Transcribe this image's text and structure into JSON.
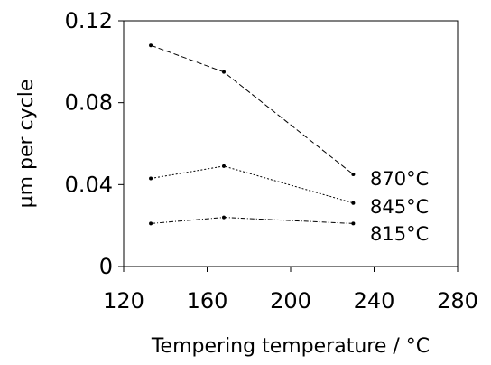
{
  "chart_data": {
    "type": "line",
    "xlabel": "Tempering temperature / °C",
    "ylabel": "µm per cycle",
    "xlim": [
      120,
      280
    ],
    "ylim": [
      0,
      0.12
    ],
    "xticks": [
      120,
      160,
      200,
      240,
      280
    ],
    "yticks": [
      0,
      0.04,
      0.08,
      0.12
    ],
    "ytick_labels": [
      "0",
      "0.04",
      "0.08",
      "0.12"
    ],
    "grid": false,
    "legend": "inline labels at right end of each series",
    "series": [
      {
        "name": "870°C",
        "x": [
          133,
          168,
          230
        ],
        "y": [
          0.108,
          0.095,
          0.045
        ],
        "dash": "dashed"
      },
      {
        "name": "845°C",
        "x": [
          133,
          168,
          230
        ],
        "y": [
          0.043,
          0.049,
          0.031
        ],
        "dash": "dotted"
      },
      {
        "name": "815°C",
        "x": [
          133,
          168,
          230
        ],
        "y": [
          0.021,
          0.024,
          0.021
        ],
        "dash": "dash-dot"
      }
    ]
  }
}
